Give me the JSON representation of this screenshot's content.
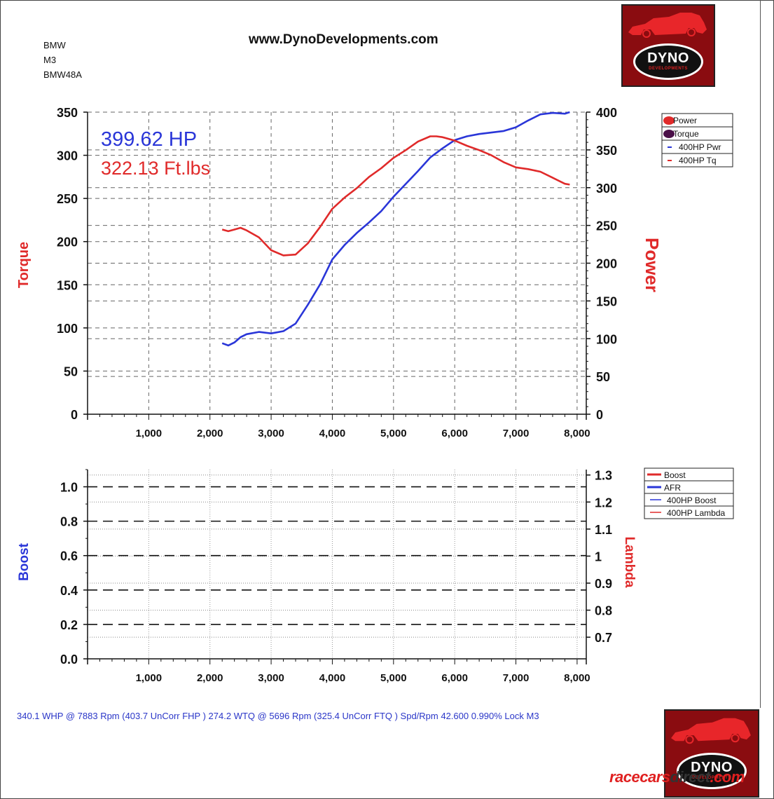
{
  "vehicle": {
    "make": "BMW",
    "model": "M3",
    "run_id": "BMW48A"
  },
  "site": "www.DynoDevelopments.com",
  "footer_note": "340.1 WHP @ 7883 Rpm (403.7 UnCorr FHP )  274.2 WTQ @ 5696 Rpm (325.4 UnCorr FTQ ) Spd/Rpm 42.600 0.990% Lock M3",
  "logo": {
    "word": "DYNO",
    "sub": "DEVELOPMENTS"
  },
  "watermark": {
    "part1": "racecars",
    "part2": "direct",
    "part3": ".com"
  },
  "colors": {
    "power": "#2a36d8",
    "torque": "#e02a2a",
    "axis": "#111111",
    "grid": "#666666"
  },
  "chart_data": [
    {
      "type": "line",
      "peak_hp_label": "399.62 HP",
      "peak_tq_label": "322.13 Ft.lbs",
      "y_left_label": "Torque",
      "y_right_label": "Power",
      "x_ticks": [
        "1,000",
        "2,000",
        "3,000",
        "4,000",
        "5,000",
        "6,000",
        "7,000",
        "8,000"
      ],
      "y_left_ticks": [
        "0",
        "50",
        "100",
        "150",
        "200",
        "250",
        "300",
        "350"
      ],
      "y_right_ticks": [
        "0",
        "50",
        "100",
        "150",
        "200",
        "250",
        "300",
        "350",
        "400"
      ],
      "xlim": [
        0,
        8150
      ],
      "ylim_left": [
        0,
        350
      ],
      "ylim_right": [
        0,
        400
      ],
      "grid": true,
      "legend": {
        "placement": "top-right",
        "entries": [
          {
            "label": "Power",
            "color": "#e02a2a"
          },
          {
            "label": "Torque",
            "color": "#4a1048"
          },
          {
            "label": "400HP Pwr",
            "color": "#2a36d8"
          },
          {
            "label": "400HP Tq",
            "color": "#e02a2a"
          }
        ]
      },
      "series": [
        {
          "key": "power",
          "axis": "right",
          "color": "#2a36d8",
          "x": [
            2200,
            2300,
            2400,
            2500,
            2600,
            2800,
            3000,
            3200,
            3400,
            3600,
            3800,
            4000,
            4200,
            4400,
            4600,
            4800,
            5000,
            5200,
            5400,
            5600,
            5800,
            6000,
            6200,
            6400,
            6600,
            6800,
            7000,
            7200,
            7400,
            7600,
            7800,
            7880
          ],
          "y": [
            94,
            91,
            95,
            102,
            106,
            109,
            107,
            110,
            120,
            145,
            172,
            205,
            224,
            240,
            254,
            269,
            288,
            305,
            322,
            340,
            352,
            363,
            368,
            371,
            373,
            375,
            380,
            389,
            397,
            399,
            398,
            400
          ]
        },
        {
          "key": "torque",
          "axis": "left",
          "color": "#e02a2a",
          "x": [
            2200,
            2300,
            2400,
            2500,
            2600,
            2800,
            3000,
            3200,
            3400,
            3600,
            3800,
            4000,
            4200,
            4400,
            4600,
            4800,
            5000,
            5200,
            5400,
            5600,
            5700,
            5800,
            6000,
            6200,
            6400,
            6600,
            6800,
            7000,
            7200,
            7400,
            7600,
            7800,
            7880
          ],
          "y": [
            214,
            212,
            214,
            216,
            213,
            205,
            190,
            184,
            185,
            198,
            217,
            238,
            251,
            262,
            275,
            285,
            297,
            306,
            316,
            322,
            322,
            321,
            317,
            311,
            306,
            300,
            292,
            286,
            284,
            281,
            274,
            267,
            266
          ]
        }
      ]
    },
    {
      "type": "line",
      "y_left_label": "Boost",
      "y_right_label": "Lambda",
      "x_ticks": [
        "1,000",
        "2,000",
        "3,000",
        "4,000",
        "5,000",
        "6,000",
        "7,000",
        "8,000"
      ],
      "y_left_ticks": [
        "0.0",
        "0.2",
        "0.4",
        "0.6",
        "0.8",
        "1.0"
      ],
      "y_right_ticks": [
        "0.7",
        "0.8",
        "0.9",
        "1",
        "1.1",
        "1.2",
        "1.3"
      ],
      "xlim": [
        0,
        8150
      ],
      "ylim_left": [
        0,
        1.1
      ],
      "ylim_right": [
        0.62,
        1.32
      ],
      "grid": true,
      "legend": {
        "placement": "top-right",
        "entries": [
          {
            "label": "Boost",
            "color": "#e02a2a"
          },
          {
            "label": "AFR",
            "color": "#2a36d8"
          },
          {
            "label": "400HP Boost",
            "color": "#2a36d8"
          },
          {
            "label": "400HP Lambda",
            "color": "#e02a2a"
          }
        ]
      },
      "series": []
    }
  ]
}
